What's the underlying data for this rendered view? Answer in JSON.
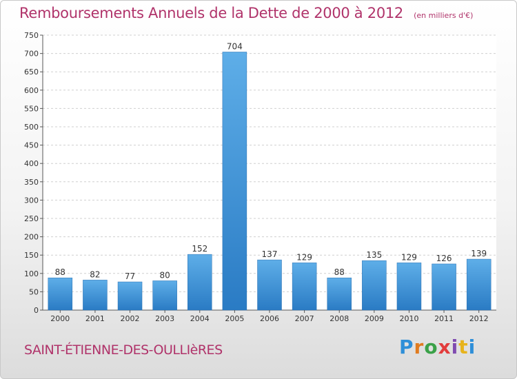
{
  "header": {
    "title": "Remboursements Annuels de la Dette de 2000 à 2012",
    "unit": "(en milliers d'€)"
  },
  "footer": {
    "commune": "SAINT-ÉTIENNE-DES-OULLIèRES",
    "logo": "Proxiti"
  },
  "colors": {
    "title": "#b0336a",
    "bar_light": "#5eaee8",
    "bar_dark": "#2a7bc4"
  },
  "chart_data": {
    "type": "bar",
    "title": "Remboursements Annuels de la Dette de 2000 à 2012",
    "xlabel": "",
    "ylabel": "",
    "categories": [
      "2000",
      "2001",
      "2002",
      "2003",
      "2004",
      "2005",
      "2006",
      "2007",
      "2008",
      "2009",
      "2010",
      "2011",
      "2012"
    ],
    "values": [
      88,
      82,
      77,
      80,
      152,
      704,
      137,
      129,
      88,
      135,
      129,
      126,
      139
    ],
    "ylim": [
      0,
      750
    ],
    "yticks": [
      0,
      50,
      100,
      150,
      200,
      250,
      300,
      350,
      400,
      450,
      500,
      550,
      600,
      650,
      700,
      750
    ],
    "grid": true,
    "data_labels": true
  }
}
